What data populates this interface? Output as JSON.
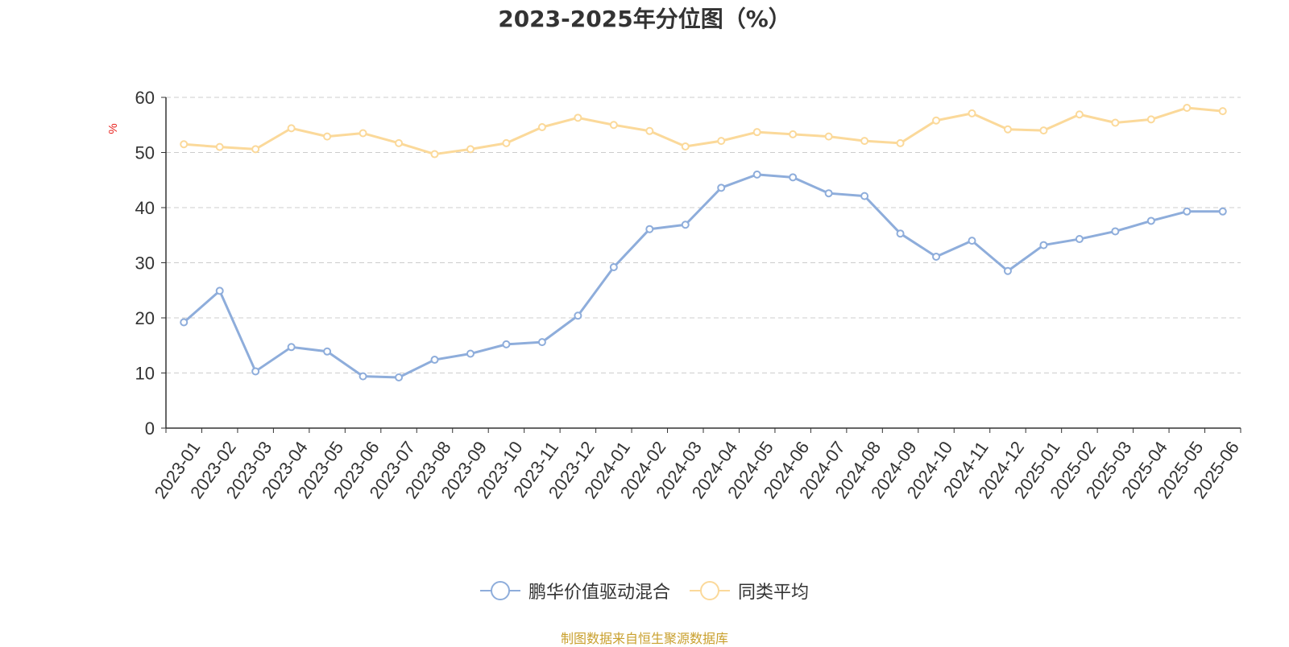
{
  "chart_data": {
    "type": "line",
    "title": "2023-2025年分位图（%）",
    "ylabel": "%",
    "ylim": [
      0,
      60
    ],
    "yticks": [
      0,
      10,
      20,
      30,
      40,
      50,
      60
    ],
    "grid": true,
    "legend_position": "bottom",
    "categories": [
      "2023-01",
      "2023-02",
      "2023-03",
      "2023-04",
      "2023-05",
      "2023-06",
      "2023-07",
      "2023-08",
      "2023-09",
      "2023-10",
      "2023-11",
      "2023-12",
      "2024-01",
      "2024-02",
      "2024-03",
      "2024-04",
      "2024-05",
      "2024-06",
      "2024-07",
      "2024-08",
      "2024-09",
      "2024-10",
      "2024-11",
      "2024-12",
      "2025-01",
      "2025-02",
      "2025-03",
      "2025-04",
      "2025-05",
      "2025-06"
    ],
    "series": [
      {
        "name": "鹏华价值驱动混合",
        "color": "#8eaddb",
        "values": [
          19.2,
          24.9,
          10.3,
          14.7,
          13.9,
          9.4,
          9.2,
          12.4,
          13.5,
          15.2,
          15.6,
          20.4,
          29.2,
          36.1,
          36.9,
          43.6,
          46.0,
          45.5,
          42.6,
          42.1,
          35.3,
          31.1,
          34.0,
          28.5,
          33.2,
          34.3,
          35.7,
          37.6,
          39.3,
          39.3
        ]
      },
      {
        "name": "同类平均",
        "color": "#fbd99a",
        "values": [
          51.5,
          51.0,
          50.6,
          54.4,
          52.9,
          53.5,
          51.7,
          49.7,
          50.6,
          51.7,
          54.6,
          56.3,
          55.0,
          53.9,
          51.1,
          52.1,
          53.7,
          53.3,
          52.9,
          52.1,
          51.7,
          55.8,
          57.1,
          54.2,
          54.0,
          56.9,
          55.4,
          56.0,
          58.1,
          57.5
        ]
      }
    ]
  },
  "source_text": "制图数据来自恒生聚源数据库"
}
